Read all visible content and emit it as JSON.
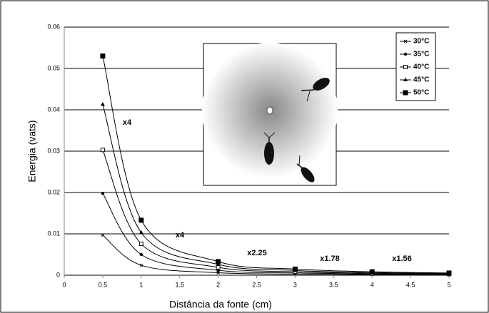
{
  "chart_data": {
    "type": "line",
    "xlabel": "Distância da fonte (cm)",
    "ylabel": "Energia (vats)",
    "x": [
      0.5,
      1,
      2,
      3,
      4,
      5
    ],
    "series": [
      {
        "name": "30°C",
        "color": "#000000",
        "marker": "x",
        "values": [
          0.0097,
          0.0024,
          0.0006,
          0.00027,
          0.00015,
          0.0001
        ]
      },
      {
        "name": "35°C",
        "color": "#000000",
        "marker": "dot",
        "values": [
          0.0198,
          0.005,
          0.0012,
          0.00055,
          0.00031,
          0.0002
        ]
      },
      {
        "name": "40°C",
        "color": "#000000",
        "marker": "open-square",
        "values": [
          0.0303,
          0.0076,
          0.0019,
          0.00084,
          0.00047,
          0.0003
        ]
      },
      {
        "name": "45°C",
        "color": "#000000",
        "marker": "triangle",
        "values": [
          0.0413,
          0.0103,
          0.0026,
          0.00115,
          0.00065,
          0.00041
        ]
      },
      {
        "name": "50°C",
        "color": "#000000",
        "marker": "square",
        "values": [
          0.053,
          0.0133,
          0.0033,
          0.00148,
          0.00083,
          0.00053
        ]
      }
    ],
    "annotations": [
      "x4",
      "x4",
      "x2.25",
      "x1.78",
      "x1.56"
    ],
    "xlim": [
      0,
      5
    ],
    "xticks": [
      0,
      0.5,
      1,
      1.5,
      2,
      2.5,
      3,
      3.5,
      4,
      4.5,
      5
    ],
    "ylim": [
      0,
      0.06
    ],
    "yticks": [
      0,
      0.01,
      0.02,
      0.03,
      0.04,
      0.05,
      0.06
    ],
    "grid": true,
    "legend": "top-right"
  }
}
